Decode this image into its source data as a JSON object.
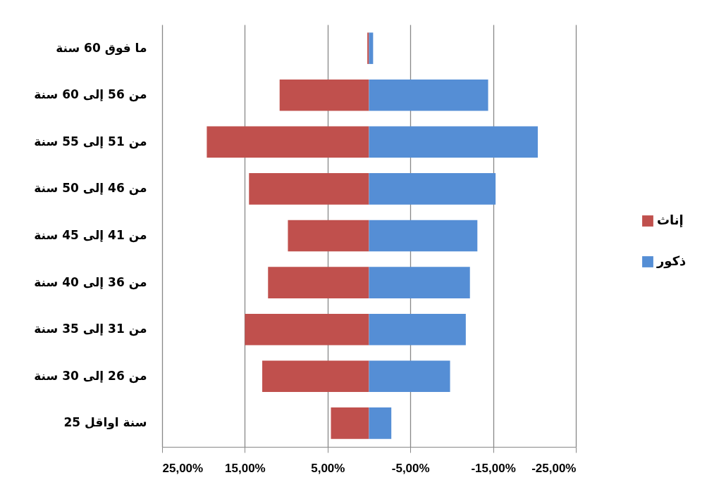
{
  "chart_data": {
    "type": "bar",
    "orientation": "horizontal",
    "categories": [
      "ما فوق 60 سنة",
      "من 56 إلى 60 سنة",
      "من 51 إلى 55 سنة",
      "من 46 إلى 50 سنة",
      "من 41 إلى 45 سنة",
      "من 36 إلى 40 سنة",
      "من 31 إلى 35 سنة",
      "من 26 إلى 30 سنة",
      "25 سنة اواقل"
    ],
    "series": [
      {
        "name": "إناث",
        "color": "#c0504d",
        "values": [
          0.2,
          10.8,
          19.6,
          14.5,
          9.8,
          12.2,
          15.0,
          12.9,
          4.6
        ]
      },
      {
        "name": "ذكور",
        "color": "#558ed5",
        "values": [
          -0.5,
          -14.4,
          -20.4,
          -15.3,
          -13.1,
          -12.2,
          -11.7,
          -9.8,
          -2.7
        ]
      }
    ],
    "xlim": [
      25,
      -25
    ],
    "xticks": [
      {
        "value": 25,
        "label": "25,00%"
      },
      {
        "value": 15,
        "label": "15,00%"
      },
      {
        "value": 5,
        "label": "5,00%"
      },
      {
        "value": -5,
        "label": "-5,00%"
      },
      {
        "value": -15,
        "label": "-15,00%"
      },
      {
        "value": -25,
        "label": "-25,00%"
      }
    ],
    "grid": "x",
    "legend": "right",
    "stacked": true
  }
}
